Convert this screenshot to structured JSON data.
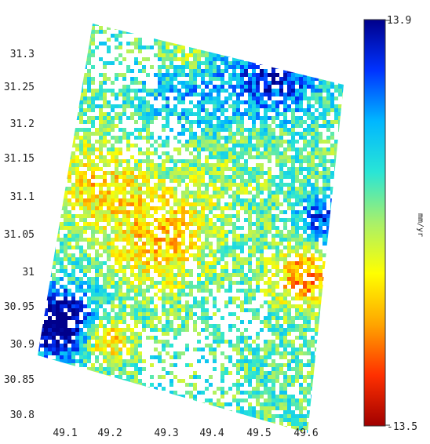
{
  "map": {
    "y_ticks": [
      "31.3",
      "31.25",
      "31.2",
      "31.15",
      "31.1",
      "31.05",
      "31",
      "30.95",
      "30.9",
      "30.85",
      "30.8"
    ],
    "x_ticks": [
      "49.1",
      "49.2",
      "49.3",
      "49.4",
      "49.5",
      "49.6"
    ]
  },
  "colorbar": {
    "max_label": "13.9",
    "min_label": "-13.5",
    "unit": "mm/yr",
    "max": 13.9,
    "min": -13.5,
    "colors": [
      "#00008b",
      "#0033ff",
      "#00b7ff",
      "#29e5d6",
      "#a8f06a",
      "#ffff00",
      "#ffa500",
      "#ff3000",
      "#a00000"
    ]
  }
}
